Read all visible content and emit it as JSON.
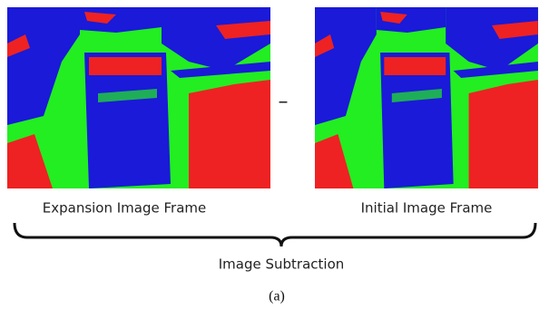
{
  "figure": {
    "operator": "–",
    "left_label": "Expansion Image Frame",
    "right_label": "Initial Image Frame",
    "brace_label": "Image Subtraction",
    "caption": "(a)"
  }
}
